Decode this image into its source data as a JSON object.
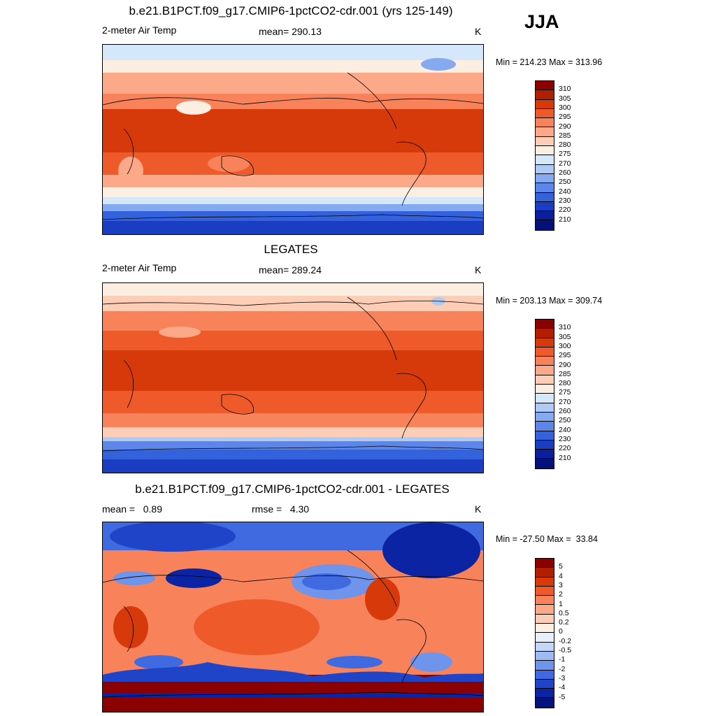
{
  "season": "JJA",
  "panels": [
    {
      "title": "b.e21.B1PCT.f09_g17.CMIP6-1pctCO2-cdr.001 (yrs 125-149)",
      "left_label": "2-meter Air Temp",
      "center_label": "mean= 290.13",
      "units": "K",
      "minmax": "Min = 214.23 Max = 313.96",
      "colorbar": {
        "labels": [
          "310",
          "305",
          "300",
          "295",
          "290",
          "285",
          "280",
          "275",
          "270",
          "260",
          "250",
          "240",
          "230",
          "220",
          "210"
        ],
        "colors": [
          "#8b0000",
          "#b21f00",
          "#d63a0a",
          "#ee5a2a",
          "#f8825a",
          "#fba989",
          "#fdcdb5",
          "#fdeee2",
          "#d4e7fb",
          "#afcbf5",
          "#86aaf0",
          "#5d86ea",
          "#3461dc",
          "#1a3dc2",
          "#0a1f9c",
          "#04117a"
        ]
      }
    },
    {
      "title": "LEGATES",
      "left_label": "2-meter Air Temp",
      "center_label": "mean= 289.24",
      "units": "K",
      "minmax": "Min = 203.13 Max = 309.74",
      "colorbar": {
        "labels": [
          "310",
          "305",
          "300",
          "295",
          "290",
          "285",
          "280",
          "275",
          "270",
          "260",
          "250",
          "240",
          "230",
          "220",
          "210"
        ],
        "colors": [
          "#8b0000",
          "#b21f00",
          "#d63a0a",
          "#ee5a2a",
          "#f8825a",
          "#fba989",
          "#fdcdb5",
          "#fdeee2",
          "#d4e7fb",
          "#afcbf5",
          "#86aaf0",
          "#5d86ea",
          "#3461dc",
          "#1a3dc2",
          "#0a1f9c",
          "#04117a"
        ]
      }
    },
    {
      "title": "b.e21.B1PCT.f09_g17.CMIP6-1pctCO2-cdr.001 - LEGATES",
      "left_label": "mean =   0.89",
      "center_label": "rmse =   4.30",
      "units": "K",
      "minmax": "Min = -27.50 Max =  33.84",
      "colorbar": {
        "labels": [
          "5",
          "4",
          "3",
          "2",
          "1",
          "0.5",
          "0.2",
          "0",
          "-0.2",
          "-0.5",
          "-1",
          "-2",
          "-3",
          "-4",
          "-5"
        ],
        "colors": [
          "#8b0000",
          "#b21f00",
          "#d63a0a",
          "#ee5a2a",
          "#f8825a",
          "#fba989",
          "#fdcdb5",
          "#fdeee2",
          "#e6effb",
          "#c5d7f7",
          "#9dbaf2",
          "#6e94ec",
          "#3f6ae0",
          "#1f44c8",
          "#0a24a4",
          "#04127e"
        ]
      }
    }
  ]
}
